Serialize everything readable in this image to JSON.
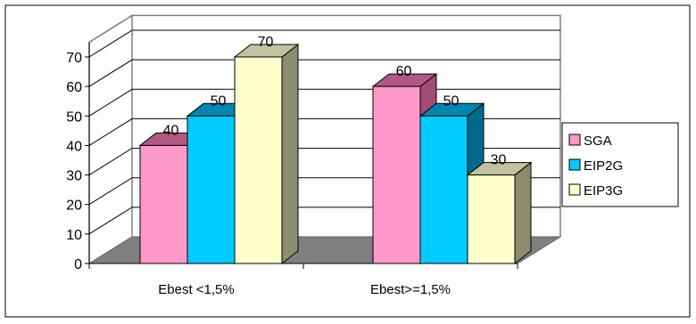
{
  "chart_data": {
    "type": "bar",
    "categories": [
      "Ebest <1,5%",
      "Ebest>=1,5%"
    ],
    "series": [
      {
        "name": "SGA",
        "values": [
          40,
          60
        ],
        "color": "#ff99cc",
        "top": "#b05a82",
        "side": "#a34c76"
      },
      {
        "name": "EIP2G",
        "values": [
          50,
          50
        ],
        "color": "#00ccff",
        "top": "#0088b0",
        "side": "#006a8c"
      },
      {
        "name": "EIP3G",
        "values": [
          70,
          30
        ],
        "color": "#ffffcc",
        "top": "#c2c2a0",
        "side": "#8c8c6e"
      }
    ],
    "yticks": [
      0,
      10,
      20,
      30,
      40,
      50,
      60,
      70
    ],
    "ylim": [
      0,
      75
    ],
    "grid": true,
    "legend_position": "right",
    "floor_color": "#808080",
    "frame_color": "#000000"
  }
}
